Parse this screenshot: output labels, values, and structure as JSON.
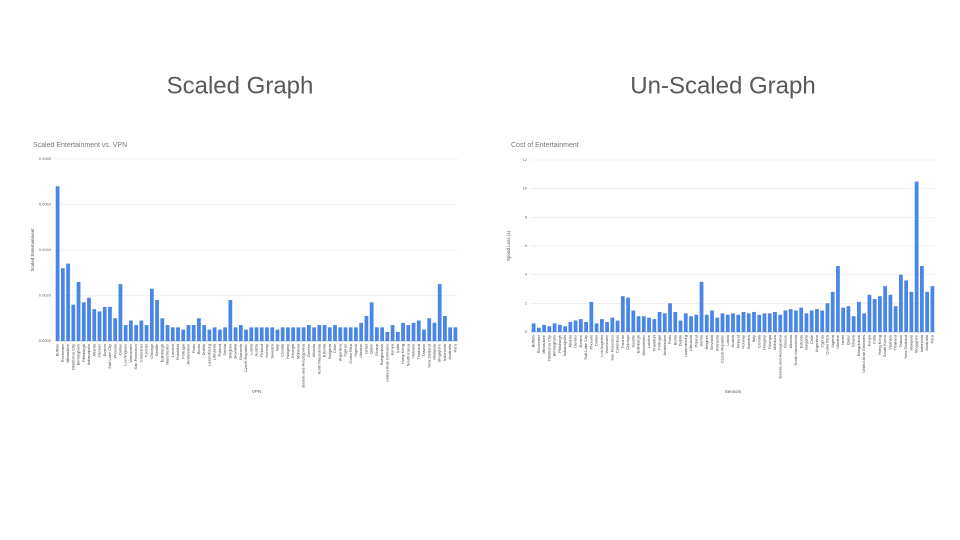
{
  "slide_titles": [
    "Scaled Graph",
    "Un-Scaled Graph"
  ],
  "chart_data": [
    {
      "type": "bar",
      "title": "Scaled Entertainment vs. VPN",
      "x_label": "VPN",
      "y_label": "Scaled Entertainment",
      "color": "#4a86e8",
      "grid": true,
      "categories": [
        "Buffalo",
        "Rochester",
        "Milwaukee",
        "Oklahoma City",
        "Birmingham",
        "Pittsburgh",
        "Indianapolis",
        "Atlanta",
        "Denver",
        "Boston",
        "Salt Lake City",
        "Phoenix",
        "Dallas",
        "Los Angeles",
        "Vancouver",
        "San Francisco",
        "Columbus",
        "Toronto",
        "Chicago",
        "Seattle",
        "Edinburgh",
        "Manchester",
        "London",
        "Frankfurt",
        "Portugal",
        "Amsterdam",
        "Paris",
        "Berlin",
        "Dublin",
        "Luxembourg",
        "Lithuania",
        "Poland",
        "Serbia",
        "Belgium",
        "Slovakia",
        "Romania",
        "Czech Republic",
        "Latvia",
        "Austria",
        "Finland",
        "Norway",
        "Sweden",
        "Italy",
        "Croatia",
        "Hungary",
        "Georgia",
        "Moldova",
        "Bosnia and Herzegovina",
        "Greece",
        "Albania",
        "North Macedonia",
        "Estonia",
        "Bulgaria",
        "Chile",
        "Argentina",
        "Cyprus",
        "Costa Rica",
        "Nigeria",
        "Ukraine",
        "Israel",
        "Qatar",
        "Ghana",
        "Bangladesh",
        "United Arab Emirates",
        "Kenya",
        "India",
        "Hong Kong",
        "South Korea",
        "Vietnam",
        "Thailand",
        "Taiwan",
        "New Zealand",
        "Malaysia",
        "Singapore",
        "Indonesia",
        "Australia",
        "Peru"
      ],
      "values": [
        0.0068,
        0.0032,
        0.0034,
        0.0016,
        0.0026,
        0.0017,
        0.0019,
        0.0014,
        0.0013,
        0.0015,
        0.0015,
        0.001,
        0.0025,
        0.0007,
        0.0009,
        0.0007,
        0.0009,
        0.0007,
        0.0023,
        0.0018,
        0.001,
        0.0007,
        0.0006,
        0.0006,
        0.0005,
        0.0007,
        0.0007,
        0.001,
        0.0007,
        0.0005,
        0.0006,
        0.0005,
        0.0006,
        0.0018,
        0.0006,
        0.0007,
        0.0005,
        0.0006,
        0.0006,
        0.0006,
        0.0006,
        0.0006,
        0.0005,
        0.0006,
        0.0006,
        0.0006,
        0.0006,
        0.0006,
        0.0007,
        0.0006,
        0.0007,
        0.0007,
        0.0006,
        0.0007,
        0.0006,
        0.0006,
        0.0006,
        0.0006,
        0.0008,
        0.0011,
        0.0017,
        0.0006,
        0.0006,
        0.0004,
        0.0007,
        0.0004,
        0.0008,
        0.0007,
        0.0008,
        0.0009,
        0.0005,
        0.001,
        0.0008,
        0.0025,
        0.0011,
        0.0006,
        0.0006
      ],
      "ylim": [
        0,
        0.008
      ],
      "yticks": [
        {
          "value": 0,
          "label": "0.0000"
        },
        {
          "value": 0.002,
          "label": "0.0020"
        },
        {
          "value": 0.004,
          "label": "0.0040"
        },
        {
          "value": 0.006,
          "label": "0.0060"
        },
        {
          "value": 0.008,
          "label": "0.0080"
        }
      ]
    },
    {
      "type": "bar",
      "title": "Cost of Entertainment",
      "x_label": "Sensors",
      "y_label": "Spend Less (x)",
      "color": "#4a86e8",
      "grid": true,
      "categories": [
        "Buffalo",
        "Rochester",
        "Milwaukee",
        "Oklahoma City",
        "Birmingham",
        "Pittsburgh",
        "Indianapolis",
        "Atlanta",
        "Denver",
        "Boston",
        "Salt Lake City",
        "Phoenix",
        "Dallas",
        "Los Angeles",
        "Vancouver",
        "San Francisco",
        "Columbus",
        "Toronto",
        "Chicago",
        "Seattle",
        "Edinburgh",
        "Manchester",
        "London",
        "Frankfurt",
        "Portugal",
        "Amsterdam",
        "Paris",
        "Berlin",
        "Dublin",
        "Luxembourg",
        "Lithuania",
        "Poland",
        "Serbia",
        "Belgium",
        "Slovakia",
        "Romania",
        "Czech Republic",
        "Latvia",
        "Austria",
        "Finland",
        "Norway",
        "Sweden",
        "Italy",
        "Croatia",
        "Hungary",
        "Georgia",
        "Moldova",
        "Bosnia and Herzegovina",
        "Greece",
        "Albania",
        "North Macedonia",
        "Estonia",
        "Bulgaria",
        "Chile",
        "Argentina",
        "Cyprus",
        "Costa Rica",
        "Nigeria",
        "Ukraine",
        "Israel",
        "Qatar",
        "Ghana",
        "Bangladesh",
        "United Arab Emirates",
        "Kenya",
        "India",
        "Hong Kong",
        "South Korea",
        "Vietnam",
        "Thailand",
        "Taiwan",
        "New Zealand",
        "Malaysia",
        "Singapore",
        "Indonesia",
        "Australia",
        "Peru"
      ],
      "values": [
        0.6,
        0.3,
        0.5,
        0.4,
        0.6,
        0.5,
        0.4,
        0.7,
        0.8,
        0.9,
        0.7,
        2.1,
        0.6,
        0.9,
        0.7,
        1.0,
        0.8,
        2.5,
        2.4,
        1.5,
        1.1,
        1.1,
        1.0,
        0.9,
        1.4,
        1.3,
        2.0,
        1.4,
        0.8,
        1.3,
        1.1,
        1.2,
        3.5,
        1.2,
        1.5,
        1.0,
        1.3,
        1.2,
        1.3,
        1.2,
        1.4,
        1.3,
        1.4,
        1.2,
        1.3,
        1.3,
        1.4,
        1.2,
        1.5,
        1.6,
        1.5,
        1.7,
        1.3,
        1.5,
        1.6,
        1.5,
        2.0,
        2.8,
        4.6,
        1.7,
        1.8,
        1.1,
        2.1,
        1.3,
        2.6,
        2.3,
        2.5,
        3.2,
        2.6,
        1.8,
        4.0,
        3.6,
        2.8,
        10.5,
        4.6,
        2.8,
        3.2
      ],
      "ylim": [
        0,
        12
      ],
      "yticks": [
        0,
        2,
        4,
        6,
        8,
        10,
        12
      ]
    }
  ]
}
